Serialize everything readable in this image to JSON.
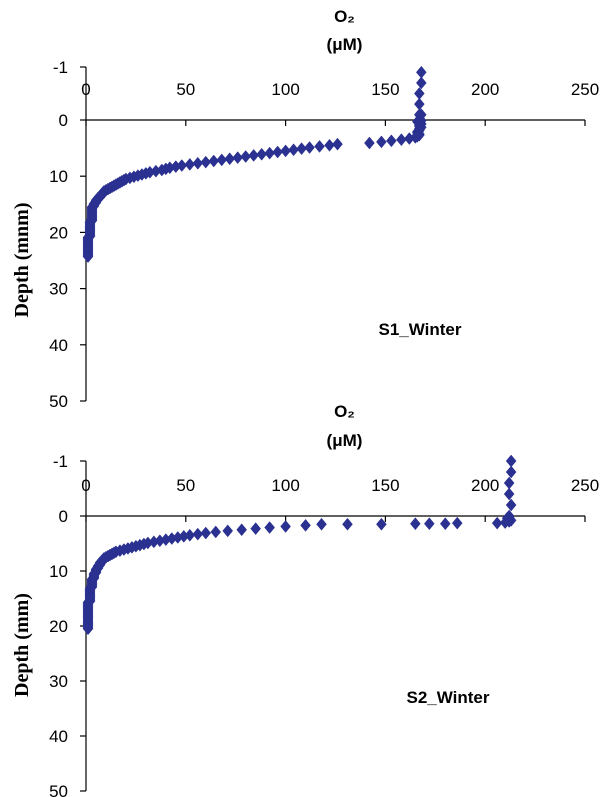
{
  "chart_data": [
    {
      "type": "scatter",
      "title": "O₂ (μM)",
      "title_lines": [
        "O₂",
        "(μM)"
      ],
      "xlabel": "",
      "ylabel": "Depth (mnm)",
      "xlim": [
        0,
        250
      ],
      "ylim": [
        -1,
        50
      ],
      "x_ticks": [
        0,
        50,
        100,
        150,
        200,
        250
      ],
      "y_ticks": [
        -1,
        0,
        10,
        20,
        30,
        40,
        50
      ],
      "x_axis_position": "top (at depth 0)",
      "y_axis_inverted": true,
      "grid": false,
      "legend": "none",
      "marker_color": "#2B3190",
      "annotation": "S1_Winter",
      "series": [
        {
          "x": [
            168,
            168,
            167,
            167,
            168,
            167,
            168,
            166,
            167,
            168,
            167,
            167,
            168,
            167,
            167,
            167,
            166,
            166,
            167,
            167,
            166,
            165,
            162,
            158,
            153,
            148,
            142,
            126,
            122,
            117,
            112,
            108,
            104,
            100,
            96,
            92,
            88,
            84,
            80,
            76,
            72,
            68,
            64,
            60,
            56,
            52,
            48,
            45,
            42,
            40,
            38,
            35,
            32,
            30,
            28,
            26,
            24,
            22,
            20,
            19,
            18,
            17,
            16,
            15,
            14,
            13,
            12,
            11,
            10,
            9,
            9,
            8,
            8,
            7,
            7,
            6,
            6,
            5,
            5,
            5,
            4,
            4,
            4,
            3,
            3,
            3,
            3,
            3,
            3,
            3,
            3,
            3,
            3,
            3,
            3,
            3,
            2,
            2,
            2,
            2,
            2,
            2,
            2,
            2,
            2,
            2,
            2,
            2,
            2,
            2,
            1,
            1,
            1,
            1,
            1,
            1,
            1,
            1,
            1,
            1,
            1,
            1,
            1,
            1,
            1,
            1,
            1,
            1
          ],
          "y": [
            -0.9,
            -0.7,
            -0.5,
            -0.3,
            -0.1,
            -0.1,
            0.1,
            0.3,
            0.5,
            0.7,
            0.9,
            1.1,
            1.3,
            1.5,
            1.7,
            1.9,
            2.1,
            2.3,
            2.5,
            2.7,
            2.9,
            3.1,
            3.3,
            3.5,
            3.7,
            3.9,
            4.1,
            4.3,
            4.5,
            4.7,
            4.9,
            5.1,
            5.3,
            5.5,
            5.7,
            5.9,
            6.1,
            6.3,
            6.5,
            6.7,
            6.9,
            7.1,
            7.3,
            7.5,
            7.7,
            7.9,
            8.1,
            8.3,
            8.5,
            8.7,
            8.9,
            9.1,
            9.3,
            9.5,
            9.7,
            9.9,
            10.1,
            10.3,
            10.5,
            10.7,
            10.9,
            11.1,
            11.3,
            11.5,
            11.7,
            11.9,
            12.1,
            12.3,
            12.5,
            12.7,
            12.9,
            13.1,
            13.3,
            13.5,
            13.7,
            13.9,
            14.1,
            14.3,
            14.5,
            14.7,
            14.9,
            15.1,
            15.3,
            15.5,
            15.7,
            15.9,
            16.1,
            16.3,
            16.5,
            16.7,
            16.9,
            17.1,
            17.3,
            17.5,
            17.7,
            17.9,
            18.1,
            18.3,
            18.5,
            18.7,
            18.9,
            19.1,
            19.3,
            19.5,
            19.7,
            19.9,
            20.1,
            20.3,
            20.5,
            20.7,
            20.9,
            21.1,
            21.3,
            21.5,
            21.7,
            21.9,
            22.1,
            22.3,
            22.5,
            22.7,
            22.9,
            23.1,
            23.3,
            23.5,
            23.7,
            23.9,
            24.1,
            24.3
          ]
        }
      ]
    },
    {
      "type": "scatter",
      "title": "O₂ (μM)",
      "title_lines": [
        "O₂",
        "(μM)"
      ],
      "xlabel": "",
      "ylabel": "Depth (mm)",
      "xlim": [
        0,
        250
      ],
      "ylim": [
        -1,
        50
      ],
      "x_ticks": [
        0,
        50,
        100,
        150,
        200,
        250
      ],
      "y_ticks": [
        -1,
        0,
        10,
        20,
        30,
        40,
        50
      ],
      "x_axis_position": "top (at depth 0)",
      "y_axis_inverted": true,
      "grid": false,
      "legend": "none",
      "marker_color": "#2B3190",
      "annotation": "S2_Winter",
      "series": [
        {
          "x": [
            213,
            213,
            212,
            212,
            213,
            212,
            212,
            211,
            212,
            213,
            212,
            210,
            206,
            186,
            180,
            172,
            165,
            148,
            131,
            118,
            110,
            100,
            92,
            85,
            78,
            71,
            65,
            60,
            56,
            52,
            49,
            46,
            43,
            40,
            37,
            34,
            31,
            29,
            27,
            25,
            23,
            21,
            19,
            17,
            15,
            14,
            13,
            12,
            11,
            10,
            9,
            9,
            8,
            8,
            7,
            7,
            7,
            6,
            6,
            6,
            5,
            5,
            5,
            5,
            4,
            4,
            4,
            4,
            4,
            3,
            3,
            3,
            3,
            3,
            3,
            3,
            3,
            2,
            2,
            2,
            2,
            2,
            2,
            2,
            2,
            2,
            2,
            2,
            2,
            2,
            1,
            1,
            1,
            1,
            1,
            1,
            1,
            1,
            1,
            1,
            1,
            1,
            1,
            1,
            1,
            1,
            1,
            1,
            1,
            1,
            1,
            1,
            1,
            1,
            1
          ],
          "y": [
            -1.0,
            -0.8,
            -0.6,
            -0.4,
            -0.2,
            0.0,
            0.2,
            0.4,
            0.6,
            0.8,
            1.0,
            1.2,
            1.3,
            1.3,
            1.4,
            1.4,
            1.4,
            1.5,
            1.5,
            1.5,
            1.7,
            1.9,
            2.1,
            2.3,
            2.5,
            2.7,
            2.9,
            3.1,
            3.3,
            3.5,
            3.7,
            3.9,
            4.1,
            4.3,
            4.5,
            4.7,
            4.9,
            5.1,
            5.3,
            5.5,
            5.7,
            5.9,
            6.1,
            6.3,
            6.5,
            6.7,
            6.9,
            7.1,
            7.3,
            7.5,
            7.7,
            7.9,
            8.1,
            8.3,
            8.5,
            8.7,
            8.9,
            9.1,
            9.3,
            9.5,
            9.7,
            9.9,
            10.1,
            10.3,
            10.5,
            10.7,
            10.9,
            11.1,
            11.3,
            11.5,
            11.7,
            11.9,
            12.1,
            12.3,
            12.5,
            12.7,
            12.9,
            13.1,
            13.3,
            13.5,
            13.7,
            13.9,
            14.1,
            14.3,
            14.5,
            14.7,
            14.9,
            15.1,
            15.3,
            15.5,
            15.7,
            15.9,
            16.1,
            16.3,
            16.5,
            16.7,
            16.9,
            17.1,
            17.3,
            17.5,
            17.7,
            17.9,
            18.1,
            18.3,
            18.5,
            18.7,
            18.9,
            19.1,
            19.3,
            19.5,
            19.7,
            19.9,
            20.1,
            20.3,
            20.5
          ]
        }
      ]
    }
  ]
}
